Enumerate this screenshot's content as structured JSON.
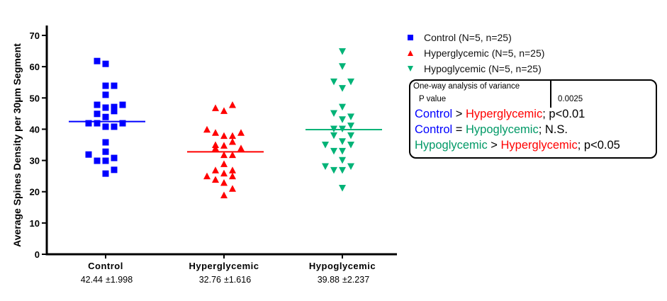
{
  "chart_data": {
    "type": "scatter",
    "ylabel": "Average Spines Density per 30µm Segment",
    "xlabel": "",
    "ylim": [
      0,
      70
    ],
    "yticks": [
      "0",
      "10",
      "20",
      "30",
      "40",
      "50",
      "60",
      "70"
    ],
    "grid": false,
    "legend_position": "top-right",
    "categories": [
      "Control",
      "Hyperglycemic",
      "Hypoglycemic"
    ],
    "series": [
      {
        "name": "Control",
        "legend": "Control (N=5, n=25)",
        "color": "#0000ff",
        "marker": "square",
        "mean": 42.44,
        "mean_label": "42.44",
        "sem_label": "±1.998",
        "points": [
          [
            -1,
            61.8
          ],
          [
            0,
            60.9
          ],
          [
            0,
            53.9
          ],
          [
            1,
            53.9
          ],
          [
            0,
            51
          ],
          [
            -1,
            47.8
          ],
          [
            0,
            46.9
          ],
          [
            1,
            47.1
          ],
          [
            1,
            45.8
          ],
          [
            2,
            47.8
          ],
          [
            -1,
            44.9
          ],
          [
            0,
            43.9
          ],
          [
            -2,
            41.9
          ],
          [
            -1,
            41.9
          ],
          [
            0,
            40.8
          ],
          [
            1,
            40.8
          ],
          [
            2,
            41.9
          ],
          [
            0,
            35.8
          ],
          [
            -2,
            31.9
          ],
          [
            0,
            32.8
          ],
          [
            -1,
            29.9
          ],
          [
            0,
            29.9
          ],
          [
            1,
            30.8
          ],
          [
            1,
            27
          ],
          [
            0,
            25.8
          ]
        ]
      },
      {
        "name": "Hyperglycemic",
        "legend": "Hyperglycemic (N=5, n=25)",
        "color": "#ff0000",
        "marker": "triangle-up",
        "mean": 32.76,
        "mean_label": "32.76",
        "sem_label": "±1.616",
        "points": [
          [
            -1,
            46.7
          ],
          [
            1,
            47.7
          ],
          [
            0,
            45.8
          ],
          [
            -2,
            39.8
          ],
          [
            -1,
            38.8
          ],
          [
            0,
            37.8
          ],
          [
            1,
            37.8
          ],
          [
            2,
            38.8
          ],
          [
            1,
            35.9
          ],
          [
            -1,
            34.9
          ],
          [
            -1,
            33.8
          ],
          [
            0,
            34.7
          ],
          [
            2,
            33.8
          ],
          [
            0,
            31.7
          ],
          [
            1,
            31.7
          ],
          [
            0,
            28.8
          ],
          [
            -1,
            26.8
          ],
          [
            1,
            26.8
          ],
          [
            0,
            25.8
          ],
          [
            1,
            24.9
          ],
          [
            -2,
            24.9
          ],
          [
            -1,
            23.8
          ],
          [
            0,
            22.8
          ],
          [
            1,
            20.9
          ],
          [
            0,
            18.8
          ]
        ]
      },
      {
        "name": "Hypoglycemic",
        "legend": "Hypoglycemic (N=5, n=25)",
        "color": "#00b377",
        "marker": "triangle-down",
        "mean": 39.88,
        "mean_label": "39.88",
        "sem_label": "±2.237",
        "points": [
          [
            0,
            65
          ],
          [
            0,
            60.2
          ],
          [
            -1,
            55.3
          ],
          [
            1,
            55.3
          ],
          [
            0,
            53.2
          ],
          [
            0,
            47.2
          ],
          [
            -1,
            45.2
          ],
          [
            1,
            44.1
          ],
          [
            0,
            43.2
          ],
          [
            1,
            41.2
          ],
          [
            -1,
            40.2
          ],
          [
            0,
            40.2
          ],
          [
            -1,
            38.1
          ],
          [
            1,
            38.1
          ],
          [
            0,
            36.2
          ],
          [
            -2,
            35.1
          ],
          [
            1,
            35.1
          ],
          [
            -1,
            33.1
          ],
          [
            0,
            33.1
          ],
          [
            0,
            30.2
          ],
          [
            -2,
            28.2
          ],
          [
            1,
            28.2
          ],
          [
            -1,
            27
          ],
          [
            0,
            27
          ],
          [
            0,
            21.3
          ]
        ]
      }
    ]
  },
  "stats_box": {
    "header": "One-way analysis of variance",
    "p_label": "P value",
    "p_value": "0.0025",
    "comparisons": [
      {
        "a": "Control",
        "op": " > ",
        "b": "Hyperglycemic",
        "result": "; p<0.01",
        "a_color": "blue",
        "b_color": "red"
      },
      {
        "a": "Control",
        "op": " = ",
        "b": "Hypoglycemic",
        "result": "; N.S.",
        "a_color": "blue",
        "b_color": "green"
      },
      {
        "a": "Hypoglycemic",
        "op": " > ",
        "b": "Hyperglycemic",
        "result": "; p<0.05",
        "a_color": "green",
        "b_color": "red"
      }
    ]
  }
}
